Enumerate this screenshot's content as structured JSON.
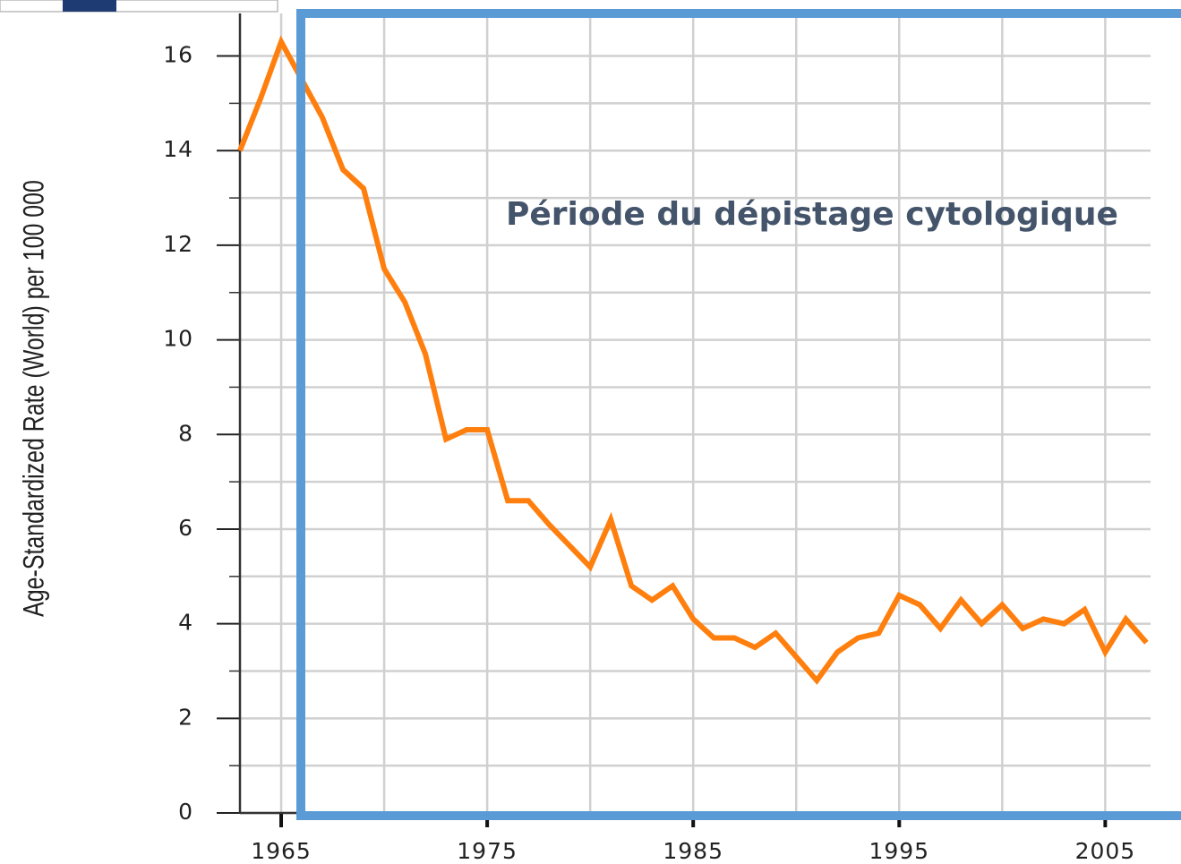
{
  "chart_data": {
    "type": "line",
    "ylabel": "Age-Standardized Rate (World) per 100 000",
    "annotation": "Période du dépistage cytologique",
    "x": [
      1963,
      1964,
      1965,
      1966,
      1967,
      1968,
      1969,
      1970,
      1971,
      1972,
      1973,
      1974,
      1975,
      1976,
      1977,
      1978,
      1979,
      1980,
      1981,
      1982,
      1983,
      1984,
      1985,
      1986,
      1987,
      1988,
      1989,
      1990,
      1991,
      1992,
      1993,
      1994,
      1995,
      1996,
      1997,
      1998,
      1999,
      2000,
      2001,
      2002,
      2003,
      2004,
      2005,
      2006,
      2007
    ],
    "series": [
      {
        "name": "Rate",
        "color": "#ff7f0e",
        "values": [
          14.0,
          15.1,
          16.3,
          15.5,
          14.7,
          13.6,
          13.2,
          11.5,
          10.8,
          9.7,
          7.9,
          8.1,
          8.1,
          6.6,
          6.6,
          6.1,
          5.65,
          5.2,
          6.2,
          4.8,
          4.5,
          4.8,
          4.1,
          3.7,
          3.7,
          3.5,
          3.8,
          3.3,
          2.8,
          3.4,
          3.7,
          3.8,
          4.6,
          4.4,
          3.9,
          4.5,
          4.0,
          4.4,
          3.9,
          4.1,
          4.0,
          4.3,
          3.4,
          4.1,
          3.6
        ]
      }
    ],
    "xlim": [
      1963,
      2007.2
    ],
    "xticks": [
      1965,
      1975,
      1985,
      1995,
      2005
    ],
    "xminor": [
      1970,
      1980,
      1990,
      2000
    ],
    "ylim": [
      0,
      16.9
    ],
    "yticks": [
      0,
      2,
      4,
      6,
      8,
      10,
      12,
      14,
      16
    ],
    "yminor": [
      1,
      3,
      5,
      7,
      9,
      11,
      13,
      15
    ],
    "grid": true
  }
}
